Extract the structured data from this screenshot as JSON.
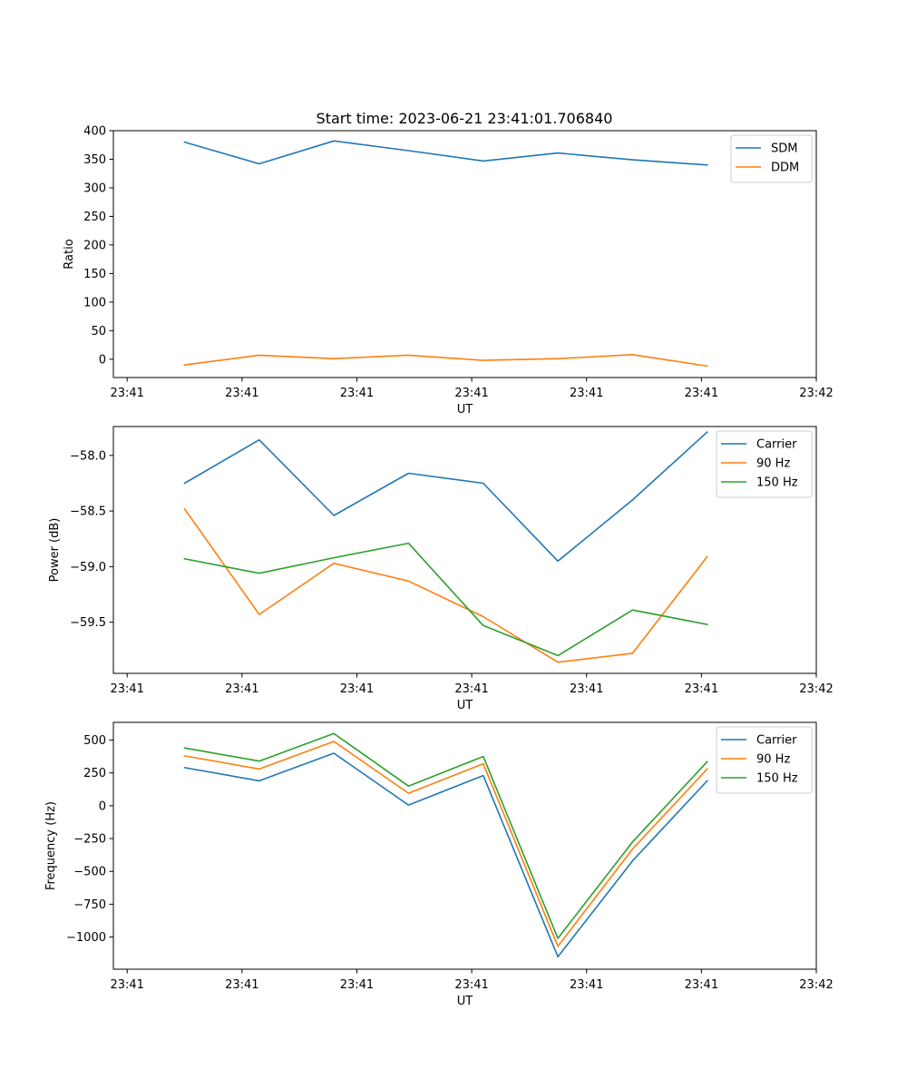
{
  "figure": {
    "title": "Start time: 2023-06-21 23:41:01.706840"
  },
  "colors": {
    "blue": "#1f77b4",
    "orange": "#ff7f0e",
    "green": "#2ca02c"
  },
  "chart_data": [
    {
      "type": "line",
      "title": "Start time: 2023-06-21 23:41:01.706840",
      "xlabel": "UT",
      "ylabel": "Ratio",
      "x_ticks": [
        "23:41",
        "23:41",
        "23:41",
        "23:41",
        "23:41",
        "23:41",
        "23:42"
      ],
      "x_tick_positions": [
        0,
        1,
        2,
        3,
        4,
        5,
        6
      ],
      "xlim": [
        -0.12,
        6.0
      ],
      "x": [
        0.5,
        1.15,
        1.8,
        2.45,
        3.1,
        3.75,
        4.4,
        5.05
      ],
      "ylim": [
        -32,
        400
      ],
      "y_ticks": [
        0,
        50,
        100,
        150,
        200,
        250,
        300,
        350,
        400
      ],
      "y_tick_labels": [
        "0",
        "50",
        "100",
        "150",
        "200",
        "250",
        "300",
        "350",
        "400"
      ],
      "legend": "top-right",
      "grid": false,
      "series": [
        {
          "name": "SDM",
          "color": "blue",
          "values": [
            380,
            342,
            382,
            365,
            347,
            361,
            349,
            340
          ]
        },
        {
          "name": "DDM",
          "color": "orange",
          "values": [
            -10,
            7,
            1,
            7,
            -2,
            1,
            8,
            -12
          ]
        }
      ]
    },
    {
      "type": "line",
      "xlabel": "UT",
      "ylabel": "Power (dB)",
      "x_ticks": [
        "23:41",
        "23:41",
        "23:41",
        "23:41",
        "23:41",
        "23:41",
        "23:42"
      ],
      "x_tick_positions": [
        0,
        1,
        2,
        3,
        4,
        5,
        6
      ],
      "xlim": [
        -0.12,
        6.0
      ],
      "x": [
        0.5,
        1.15,
        1.8,
        2.45,
        3.1,
        3.75,
        4.4,
        5.05
      ],
      "ylim": [
        -59.96,
        -57.74
      ],
      "y_ticks": [
        -58.0,
        -58.5,
        -59.0,
        -59.5
      ],
      "y_tick_labels": [
        "−58.0",
        "−58.5",
        "−59.0",
        "−59.5"
      ],
      "legend": "top-right",
      "grid": false,
      "series": [
        {
          "name": "Carrier",
          "color": "blue",
          "values": [
            -58.25,
            -57.86,
            -58.54,
            -58.16,
            -58.25,
            -58.95,
            -58.4,
            -57.79
          ]
        },
        {
          "name": "90 Hz",
          "color": "orange",
          "values": [
            -58.48,
            -59.43,
            -58.97,
            -59.13,
            -59.45,
            -59.86,
            -59.78,
            -58.91
          ]
        },
        {
          "name": "150 Hz",
          "color": "green",
          "values": [
            -58.93,
            -59.06,
            -58.92,
            -58.79,
            -59.53,
            -59.8,
            -59.39,
            -59.52
          ]
        }
      ]
    },
    {
      "type": "line",
      "xlabel": "UT",
      "ylabel": "Frequency (Hz)",
      "x_ticks": [
        "23:41",
        "23:41",
        "23:41",
        "23:41",
        "23:41",
        "23:41",
        "23:42"
      ],
      "x_tick_positions": [
        0,
        1,
        2,
        3,
        4,
        5,
        6
      ],
      "xlim": [
        -0.12,
        6.0
      ],
      "x": [
        0.5,
        1.15,
        1.8,
        2.45,
        3.1,
        3.75,
        4.4,
        5.05
      ],
      "ylim": [
        -1245,
        635
      ],
      "y_ticks": [
        500,
        250,
        0,
        -250,
        -500,
        -750,
        -1000
      ],
      "y_tick_labels": [
        "500",
        "250",
        "0",
        "−250",
        "−500",
        "−750",
        "−1000"
      ],
      "legend": "top-right",
      "grid": false,
      "series": [
        {
          "name": "Carrier",
          "color": "blue",
          "values": [
            290,
            190,
            400,
            5,
            230,
            -1150,
            -420,
            190
          ]
        },
        {
          "name": "90 Hz",
          "color": "orange",
          "values": [
            380,
            280,
            490,
            95,
            320,
            -1070,
            -330,
            280
          ]
        },
        {
          "name": "150 Hz",
          "color": "green",
          "values": [
            440,
            340,
            550,
            150,
            375,
            -1010,
            -275,
            335
          ]
        }
      ]
    }
  ]
}
